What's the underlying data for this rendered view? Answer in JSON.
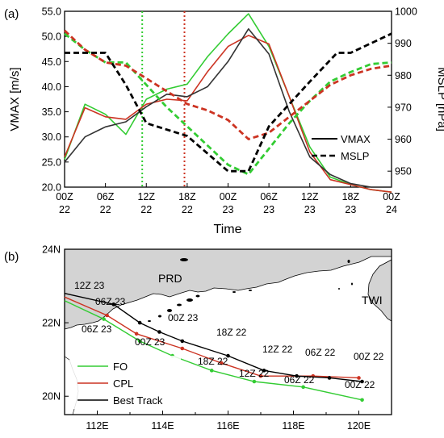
{
  "panel_a": {
    "label": "(a)",
    "ylabel_left": "VMAX  [m/s]",
    "ylabel_right": "MSLP [hPa]",
    "xlabel": "Time",
    "legend": {
      "solid": "VMAX",
      "dashed": "MSLP"
    }
  },
  "panel_b": {
    "label": "(b)",
    "region_labels": [
      "PRD",
      "TWI"
    ],
    "legend": [
      "FO",
      "CPL",
      "Best Track"
    ]
  },
  "colors": {
    "FO": "#33cc33",
    "CPL": "#cc3322",
    "BestTrack": "#000000",
    "land": "#d3d3d3"
  },
  "chart_data": [
    {
      "type": "line",
      "title": "",
      "x_ticks": [
        {
          "top": "00Z",
          "bottom": "22"
        },
        {
          "top": "06Z",
          "bottom": "22"
        },
        {
          "top": "12Z",
          "bottom": "22"
        },
        {
          "top": "18Z",
          "bottom": "22"
        },
        {
          "top": "00Z",
          "bottom": "23"
        },
        {
          "top": "06Z",
          "bottom": "23"
        },
        {
          "top": "12Z",
          "bottom": "23"
        },
        {
          "top": "18Z",
          "bottom": "23"
        },
        {
          "top": "00Z",
          "bottom": "24"
        }
      ],
      "x_hours": [
        0,
        6,
        12,
        18,
        24,
        30,
        36,
        42,
        48
      ],
      "y_left": {
        "label": "VMAX  [m/s]",
        "range": [
          20.0,
          55.0
        ],
        "ticks": [
          "20.0",
          "25.0",
          "30.0",
          "35.0",
          "40.0",
          "45.0",
          "50.0",
          "55.0"
        ]
      },
      "y_right": {
        "label": "MSLP [hPa]",
        "range": [
          945,
          1000
        ],
        "ticks": [
          "950",
          "960",
          "970",
          "980",
          "990",
          "1000"
        ]
      },
      "vertical_markers": [
        {
          "hour": 11.4,
          "color": "#33cc33",
          "style": "dotted"
        },
        {
          "hour": 17.6,
          "color": "#cc3322",
          "style": "dotted"
        }
      ],
      "series": [
        {
          "name": "FO",
          "variable": "VMAX",
          "axis": "left",
          "color": "#33cc33",
          "style": "solid",
          "x": [
            0,
            3,
            6,
            9,
            12,
            15,
            18,
            21,
            24,
            27,
            30,
            33,
            36,
            39,
            42,
            45,
            48
          ],
          "y": [
            25.5,
            36.5,
            34.5,
            30.5,
            37.5,
            39.5,
            40.5,
            46,
            50.5,
            54.5,
            48,
            38,
            28,
            22,
            20.5,
            19.5,
            19
          ]
        },
        {
          "name": "CPL",
          "variable": "VMAX",
          "axis": "left",
          "color": "#cc3322",
          "style": "solid",
          "x": [
            0,
            3,
            6,
            9,
            12,
            15,
            18,
            21,
            24,
            27,
            30,
            33,
            36,
            39,
            42,
            45,
            48
          ],
          "y": [
            26,
            35.8,
            34,
            33.5,
            36.5,
            37.5,
            37.2,
            43,
            48,
            50.2,
            48.5,
            38,
            27,
            21.5,
            20.5,
            19.5,
            19
          ]
        },
        {
          "name": "Best Track",
          "variable": "VMAX",
          "axis": "left",
          "color": "#333333",
          "style": "solid",
          "x": [
            0,
            3,
            6,
            9,
            12,
            15,
            18,
            21,
            24,
            27,
            30,
            33,
            36,
            39,
            42,
            45,
            48
          ],
          "y": [
            25,
            30,
            32,
            33,
            36,
            38.5,
            38,
            40,
            45,
            51.5,
            46.5,
            35,
            26,
            22.5,
            20.7,
            20,
            20
          ]
        },
        {
          "name": "FO",
          "variable": "MSLP",
          "axis": "right",
          "color": "#33cc33",
          "style": "dashed",
          "x": [
            0,
            3,
            6,
            9,
            12,
            15,
            18,
            21,
            24,
            27,
            30,
            33,
            36,
            39,
            42,
            45,
            48
          ],
          "y": [
            993,
            988,
            984,
            984,
            977,
            970,
            964,
            958,
            952,
            949,
            957,
            965,
            972,
            978,
            981,
            983.5,
            984
          ]
        },
        {
          "name": "CPL",
          "variable": "MSLP",
          "axis": "right",
          "color": "#cc3322",
          "style": "dashed",
          "x": [
            0,
            3,
            6,
            9,
            12,
            15,
            18,
            21,
            24,
            27,
            30,
            33,
            36,
            39,
            42,
            45,
            48
          ],
          "y": [
            994,
            988,
            984,
            983,
            979,
            975,
            971,
            969,
            966,
            960,
            962,
            967,
            972,
            977,
            980,
            982,
            983
          ]
        },
        {
          "name": "Best Track",
          "variable": "MSLP",
          "axis": "right",
          "color": "#000000",
          "style": "dashed",
          "x": [
            0,
            6,
            9,
            12,
            18,
            24,
            27,
            30,
            36,
            40,
            42,
            45,
            48
          ],
          "y": [
            987,
            987,
            977,
            965,
            961,
            950,
            950,
            964,
            978,
            987,
            987,
            990,
            993
          ]
        }
      ]
    },
    {
      "type": "scatter",
      "title": "",
      "map": true,
      "lon_ticks": [
        "112E",
        "114E",
        "116E",
        "118E",
        "120E"
      ],
      "lat_ticks": [
        "20N",
        "22N",
        "24N"
      ],
      "xlim": [
        111,
        121
      ],
      "ylim": [
        19.5,
        24
      ],
      "series": [
        {
          "name": "FO",
          "color": "#33cc33",
          "points": [
            [
              120.1,
              19.9
            ],
            [
              118.3,
              20.25
            ],
            [
              116.8,
              20.4
            ],
            [
              115.5,
              20.7
            ],
            [
              114.3,
              21.1
            ],
            [
              113.3,
              21.5
            ],
            [
              112.2,
              22.1
            ],
            [
              111,
              22.6
            ]
          ]
        },
        {
          "name": "CPL",
          "color": "#cc3322",
          "points": [
            [
              120.0,
              20.5
            ],
            [
              118.6,
              20.55
            ],
            [
              117.0,
              20.55
            ],
            [
              115.8,
              20.9
            ],
            [
              114.6,
              21.3
            ],
            [
              113.2,
              21.7
            ],
            [
              112.3,
              22.2
            ],
            [
              111,
              22.7
            ]
          ]
        },
        {
          "name": "Best Track",
          "color": "#000000",
          "points": [
            [
              120.1,
              20.4
            ],
            [
              119.1,
              20.5
            ],
            [
              118.1,
              20.55
            ],
            [
              117.1,
              20.7
            ],
            [
              116.0,
              21.1
            ],
            [
              114.6,
              21.5
            ],
            [
              113.9,
              21.75
            ],
            [
              113.3,
              22.0
            ],
            [
              112.5,
              22.5
            ],
            [
              111,
              22.8
            ]
          ]
        }
      ],
      "annotations": [
        "12Z 23",
        "06Z 23",
        "06Z 23",
        "00Z 23",
        "00Z 23",
        "18Z 22",
        "18Z 22",
        "12Z 22",
        "12Z 22",
        "06Z 22",
        "06Z 22",
        "00Z 22",
        "00Z 22"
      ]
    }
  ]
}
